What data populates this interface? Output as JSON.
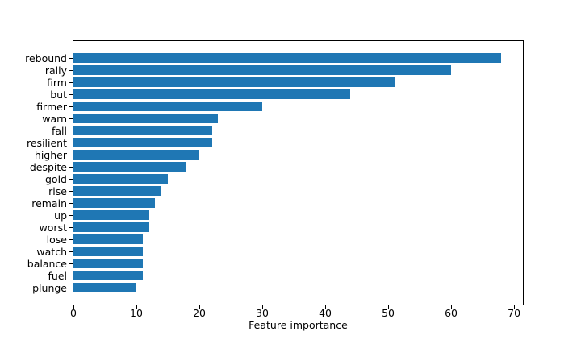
{
  "chart_data": {
    "type": "bar",
    "orientation": "horizontal",
    "title": "",
    "xlabel": "Feature importance",
    "ylabel": "",
    "categories": [
      "rebound",
      "rally",
      "firm",
      "but",
      "firmer",
      "warn",
      "fall",
      "resilient",
      "higher",
      "despite",
      "gold",
      "rise",
      "remain",
      "up",
      "worst",
      "lose",
      "watch",
      "balance",
      "fuel",
      "plunge"
    ],
    "values": [
      68,
      60,
      51,
      44,
      30,
      23,
      22,
      22,
      20,
      18,
      15,
      14,
      13,
      12,
      12,
      11,
      11,
      11,
      11,
      10
    ],
    "xticks": [
      0,
      10,
      20,
      30,
      40,
      50,
      60,
      70
    ],
    "xlim": [
      0,
      71.4
    ],
    "grid": false,
    "legend": null,
    "bar_color": "#1f77b4"
  },
  "figure": {
    "background": "#ffffff",
    "spine_color": "#000000",
    "text_color": "#000000"
  }
}
